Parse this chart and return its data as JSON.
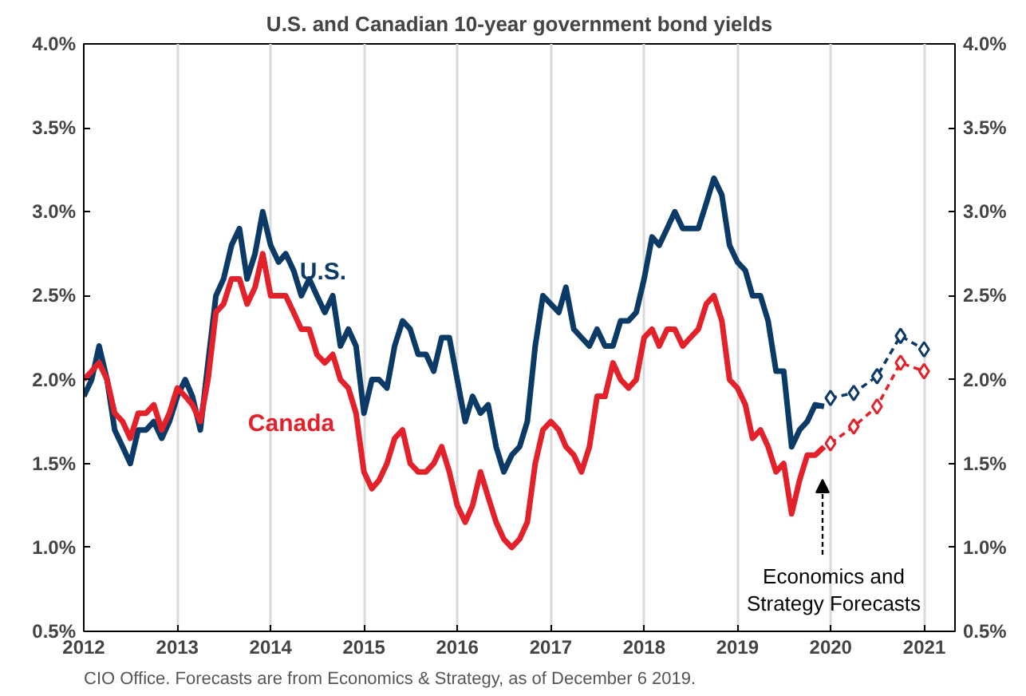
{
  "chart_data": {
    "type": "line",
    "title": "U.S. and Canadian 10-year government bond yields",
    "xlim": [
      "2012",
      "2021-05"
    ],
    "xticks": [
      "2012",
      "2013",
      "2014",
      "2015",
      "2016",
      "2017",
      "2018",
      "2019",
      "2020",
      "2021"
    ],
    "ylim": [
      0.5,
      4.0
    ],
    "yticks": [
      {
        "value": 0.5,
        "label": "0.5%"
      },
      {
        "value": 1.0,
        "label": "1.0%"
      },
      {
        "value": 1.5,
        "label": "1.5%"
      },
      {
        "value": 2.0,
        "label": "2.0%"
      },
      {
        "value": 2.5,
        "label": "2.5%"
      },
      {
        "value": 3.0,
        "label": "3.0%"
      },
      {
        "value": 3.5,
        "label": "3.5%"
      },
      {
        "value": 4.0,
        "label": "4.0%"
      }
    ],
    "y2lim": [
      0.5,
      4.0
    ],
    "y2ticks": [
      {
        "value": 0.5,
        "label": "0.5%"
      },
      {
        "value": 1.0,
        "label": "1.0%"
      },
      {
        "value": 1.5,
        "label": "1.5%"
      },
      {
        "value": 2.0,
        "label": "2.0%"
      },
      {
        "value": 2.5,
        "label": "2.5%"
      },
      {
        "value": 3.0,
        "label": "3.0%"
      },
      {
        "value": 3.5,
        "label": "3.5%"
      },
      {
        "value": 4.0,
        "label": "4.0%"
      }
    ],
    "grid": "x",
    "x": [
      "2012-01",
      "2012-02",
      "2012-03",
      "2012-04",
      "2012-05",
      "2012-06",
      "2012-07",
      "2012-08",
      "2012-09",
      "2012-10",
      "2012-11",
      "2012-12",
      "2013-01",
      "2013-02",
      "2013-03",
      "2013-04",
      "2013-05",
      "2013-06",
      "2013-07",
      "2013-08",
      "2013-09",
      "2013-10",
      "2013-11",
      "2013-12",
      "2014-01",
      "2014-02",
      "2014-03",
      "2014-04",
      "2014-05",
      "2014-06",
      "2014-07",
      "2014-08",
      "2014-09",
      "2014-10",
      "2014-11",
      "2014-12",
      "2015-01",
      "2015-02",
      "2015-03",
      "2015-04",
      "2015-05",
      "2015-06",
      "2015-07",
      "2015-08",
      "2015-09",
      "2015-10",
      "2015-11",
      "2015-12",
      "2016-01",
      "2016-02",
      "2016-03",
      "2016-04",
      "2016-05",
      "2016-06",
      "2016-07",
      "2016-08",
      "2016-09",
      "2016-10",
      "2016-11",
      "2016-12",
      "2017-01",
      "2017-02",
      "2017-03",
      "2017-04",
      "2017-05",
      "2017-06",
      "2017-07",
      "2017-08",
      "2017-09",
      "2017-10",
      "2017-11",
      "2017-12",
      "2018-01",
      "2018-02",
      "2018-03",
      "2018-04",
      "2018-05",
      "2018-06",
      "2018-07",
      "2018-08",
      "2018-09",
      "2018-10",
      "2018-11",
      "2018-12",
      "2019-01",
      "2019-02",
      "2019-03",
      "2019-04",
      "2019-05",
      "2019-06",
      "2019-07",
      "2019-08",
      "2019-09",
      "2019-10",
      "2019-11",
      "2019-12-06"
    ],
    "series": [
      {
        "name": "U.S.",
        "color": "#0b3a66",
        "marker": "none",
        "line_style": "solid",
        "values": [
          1.9,
          2.0,
          2.2,
          2.0,
          1.7,
          1.6,
          1.5,
          1.7,
          1.7,
          1.75,
          1.65,
          1.75,
          1.9,
          2.0,
          1.9,
          1.7,
          2.1,
          2.5,
          2.6,
          2.8,
          2.9,
          2.6,
          2.75,
          3.0,
          2.8,
          2.7,
          2.75,
          2.65,
          2.5,
          2.6,
          2.5,
          2.4,
          2.5,
          2.2,
          2.3,
          2.2,
          1.8,
          2.0,
          2.0,
          1.95,
          2.2,
          2.35,
          2.3,
          2.15,
          2.15,
          2.05,
          2.25,
          2.25,
          2.0,
          1.75,
          1.9,
          1.8,
          1.85,
          1.6,
          1.45,
          1.55,
          1.6,
          1.75,
          2.2,
          2.5,
          2.45,
          2.4,
          2.55,
          2.3,
          2.25,
          2.2,
          2.3,
          2.2,
          2.2,
          2.35,
          2.35,
          2.4,
          2.6,
          2.85,
          2.8,
          2.9,
          3.0,
          2.9,
          2.9,
          2.9,
          3.05,
          3.2,
          3.1,
          2.8,
          2.7,
          2.65,
          2.5,
          2.5,
          2.35,
          2.05,
          2.05,
          1.6,
          1.7,
          1.75,
          1.85,
          1.84
        ]
      },
      {
        "name": "Canada",
        "color": "#e3212b",
        "marker": "none",
        "line_style": "solid",
        "values": [
          2.0,
          2.05,
          2.1,
          2.0,
          1.8,
          1.75,
          1.65,
          1.8,
          1.8,
          1.85,
          1.7,
          1.8,
          1.95,
          1.9,
          1.85,
          1.75,
          2.0,
          2.4,
          2.45,
          2.6,
          2.6,
          2.45,
          2.55,
          2.75,
          2.5,
          2.5,
          2.5,
          2.4,
          2.3,
          2.3,
          2.15,
          2.1,
          2.15,
          2.0,
          1.95,
          1.8,
          1.45,
          1.35,
          1.4,
          1.5,
          1.65,
          1.7,
          1.5,
          1.45,
          1.45,
          1.5,
          1.6,
          1.45,
          1.25,
          1.15,
          1.25,
          1.45,
          1.3,
          1.15,
          1.05,
          1.0,
          1.05,
          1.15,
          1.5,
          1.7,
          1.75,
          1.7,
          1.6,
          1.55,
          1.45,
          1.6,
          1.9,
          1.9,
          2.1,
          2.0,
          1.95,
          2.0,
          2.25,
          2.3,
          2.2,
          2.3,
          2.3,
          2.2,
          2.25,
          2.3,
          2.45,
          2.5,
          2.35,
          2.0,
          1.95,
          1.85,
          1.65,
          1.7,
          1.6,
          1.45,
          1.5,
          1.2,
          1.4,
          1.55,
          1.55,
          1.6
        ]
      },
      {
        "color": "#0b3a66",
        "marker": "diamond",
        "line_style": "dashed",
        "x": [
          "2019-12-31",
          "2020-03-31",
          "2020-06-30",
          "2020-09-30",
          "2020-12-31"
        ],
        "values": [
          1.89,
          1.92,
          2.02,
          2.26,
          2.18
        ]
      },
      {
        "color": "#e3212b",
        "marker": "diamond",
        "line_style": "dashed",
        "x": [
          "2019-12-31",
          "2020-03-31",
          "2020-06-30",
          "2020-09-30",
          "2020-12-31"
        ],
        "values": [
          1.62,
          1.72,
          1.84,
          2.1,
          2.05
        ]
      }
    ],
    "annotations": [
      "Economics and\nStrategy Forecasts",
      "CIO Office. Forecasts are from Economics & Strategy, as of December 6 2019."
    ]
  }
}
